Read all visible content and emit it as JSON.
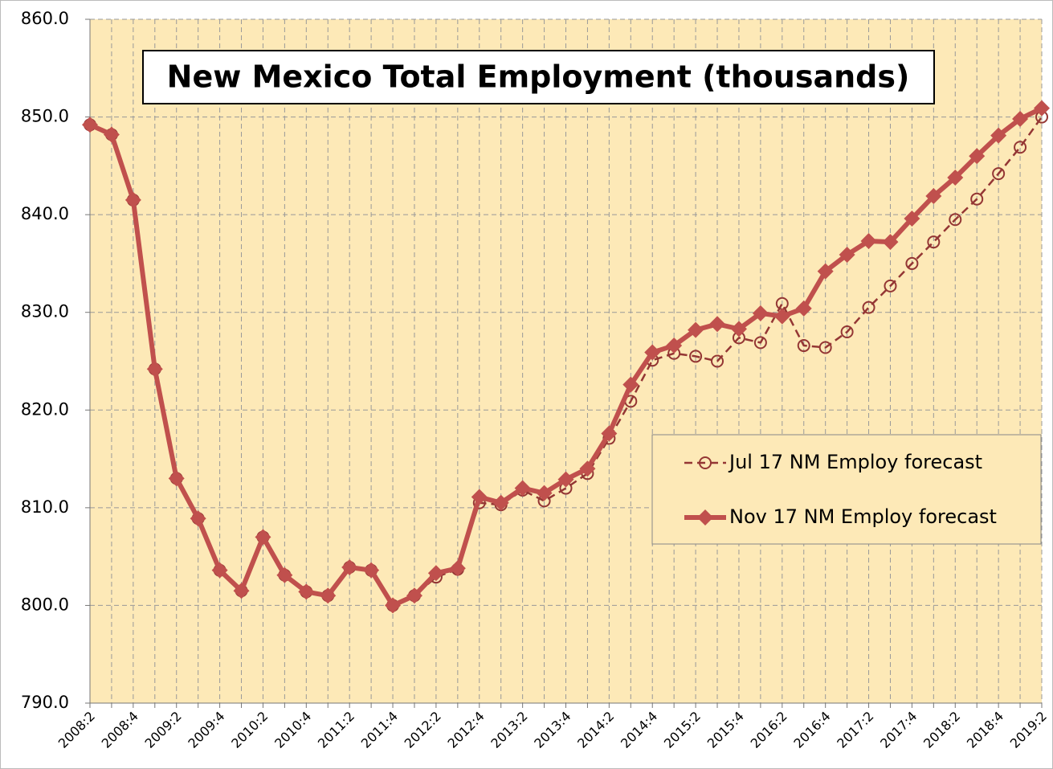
{
  "chart_data": {
    "type": "line",
    "title": "New Mexico Total Employment (thousands)",
    "categories": [
      "2008:2",
      null,
      "2008:4",
      null,
      "2009:2",
      null,
      "2009:4",
      null,
      "2010:2",
      null,
      "2010:4",
      null,
      "2011:2",
      null,
      "2011:4",
      null,
      "2012:2",
      null,
      "2012:4",
      null,
      "2013:2",
      null,
      "2013:4",
      null,
      "2014:2",
      null,
      "2014:4",
      null,
      "2015:2",
      null,
      "2015:4",
      null,
      "2016:2",
      null,
      "2016:4",
      null,
      "2017:2",
      null,
      "2017:4",
      null,
      "2018:2",
      null,
      "2018:4",
      null,
      "2019:2"
    ],
    "series": [
      {
        "name": "Jul 17 NM Employ forecast",
        "color": "#943634",
        "marker": "circle",
        "dashed": true,
        "values": [
          849.2,
          848.2,
          841.5,
          824.2,
          813.0,
          808.9,
          803.6,
          801.5,
          807.0,
          803.1,
          801.4,
          801.0,
          803.9,
          803.6,
          800.0,
          801.0,
          802.9,
          803.7,
          810.5,
          810.3,
          811.8,
          810.7,
          812.0,
          813.5,
          817.1,
          820.9,
          825.1,
          825.8,
          825.5,
          825.0,
          827.4,
          826.9,
          830.9,
          826.6,
          826.4,
          828.0,
          830.5,
          832.7,
          835.0,
          837.2,
          839.5,
          841.6,
          844.2,
          846.9,
          850.0
        ]
      },
      {
        "name": "Nov 17 NM Employ forecast",
        "color": "#c0504d",
        "marker": "diamond",
        "dashed": false,
        "values": [
          849.2,
          848.2,
          841.5,
          824.2,
          813.0,
          808.9,
          803.6,
          801.5,
          807.0,
          803.1,
          801.4,
          801.0,
          803.9,
          803.6,
          800.0,
          801.0,
          803.3,
          803.8,
          811.1,
          810.5,
          812.0,
          811.5,
          812.9,
          814.0,
          817.6,
          822.6,
          825.9,
          826.6,
          828.2,
          828.8,
          828.3,
          829.9,
          829.6,
          830.4,
          834.2,
          835.9,
          837.3,
          837.2,
          839.6,
          841.9,
          843.8,
          846.0,
          848.1,
          849.8,
          850.9
        ]
      }
    ],
    "ylim": [
      790,
      860
    ],
    "yticks": [
      {
        "value": 790,
        "label": "790.0"
      },
      {
        "value": 800,
        "label": "800.0"
      },
      {
        "value": 810,
        "label": "810.0"
      },
      {
        "value": 820,
        "label": "820.0"
      },
      {
        "value": 830,
        "label": "830.0"
      },
      {
        "value": 840,
        "label": "840.0"
      },
      {
        "value": 850,
        "label": "850.0"
      },
      {
        "value": 860,
        "label": "860.0"
      }
    ],
    "grid": true,
    "background": "#fde9b7"
  }
}
